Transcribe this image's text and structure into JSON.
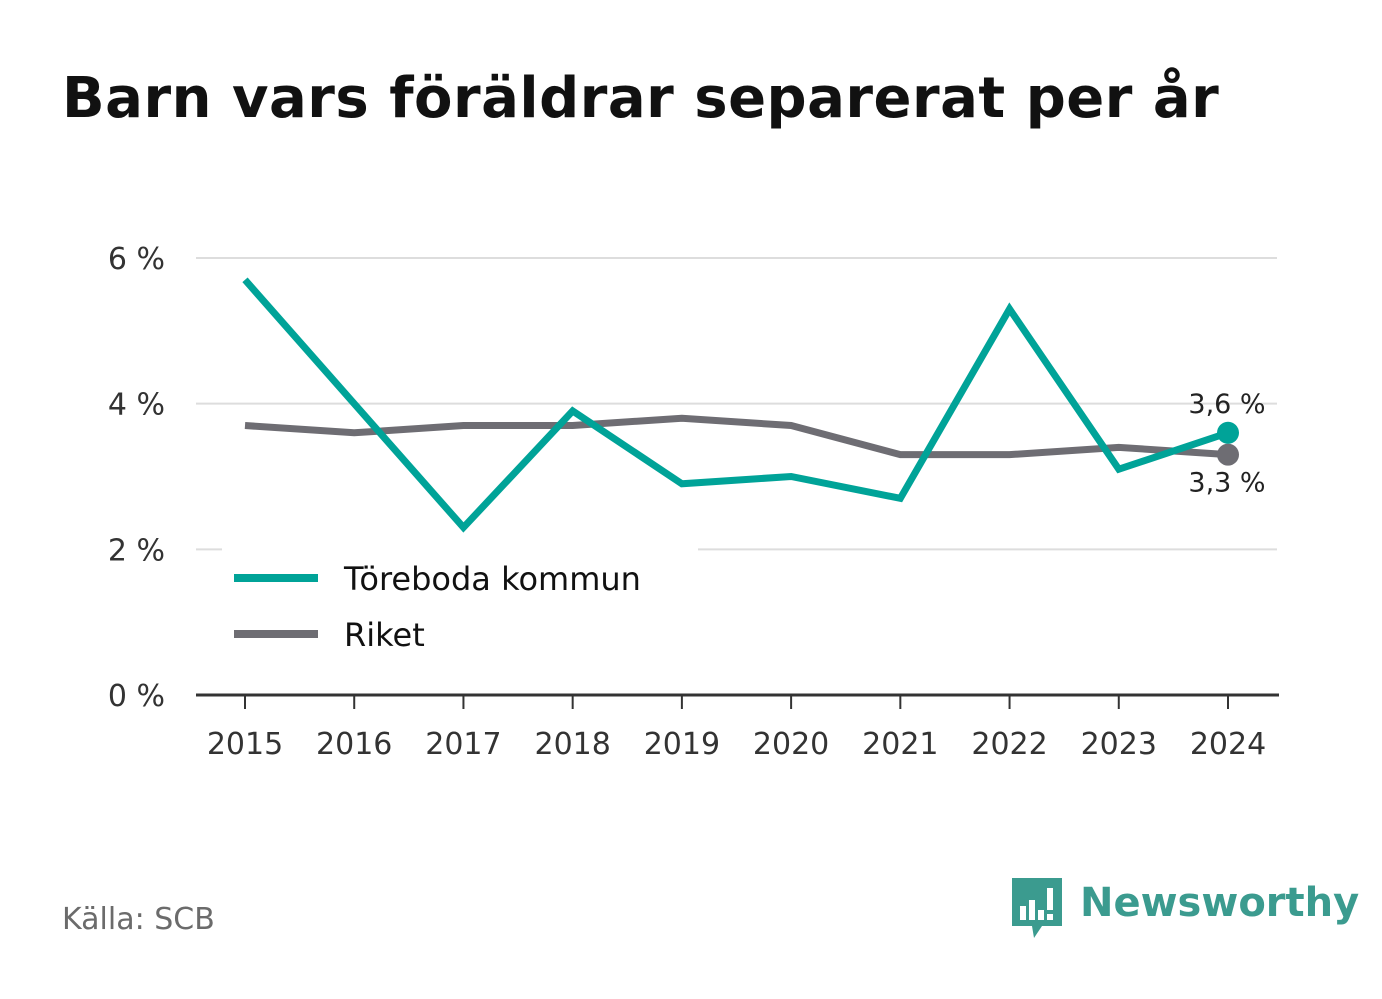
{
  "chart_data": {
    "type": "line",
    "title": "Barn vars föräldrar separerat per år",
    "x": [
      "2015",
      "2016",
      "2017",
      "2018",
      "2019",
      "2020",
      "2021",
      "2022",
      "2023",
      "2024"
    ],
    "series": [
      {
        "name": "Töreboda kommun",
        "color": "#00a398",
        "values": [
          5.7,
          4.0,
          2.3,
          3.9,
          2.9,
          3.0,
          2.7,
          5.3,
          3.1,
          3.6
        ],
        "end_label": "3,6 %"
      },
      {
        "name": "Riket",
        "color": "#6e6d73",
        "values": [
          3.7,
          3.6,
          3.7,
          3.7,
          3.8,
          3.7,
          3.3,
          3.3,
          3.4,
          3.3
        ],
        "end_label": "3,3 %"
      }
    ],
    "ylim": [
      0,
      6
    ],
    "yticks": [
      {
        "value": 0,
        "label": "0 %"
      },
      {
        "value": 2,
        "label": "2 %"
      },
      {
        "value": 4,
        "label": "4 %"
      },
      {
        "value": 6,
        "label": "6 %"
      }
    ],
    "grid": true,
    "legend_position": "bottom-left"
  },
  "source": "Källa: SCB",
  "brand": {
    "name": "Newsworthy",
    "icon": "newsworthy-logo-icon",
    "color": "#3b9b8f"
  }
}
